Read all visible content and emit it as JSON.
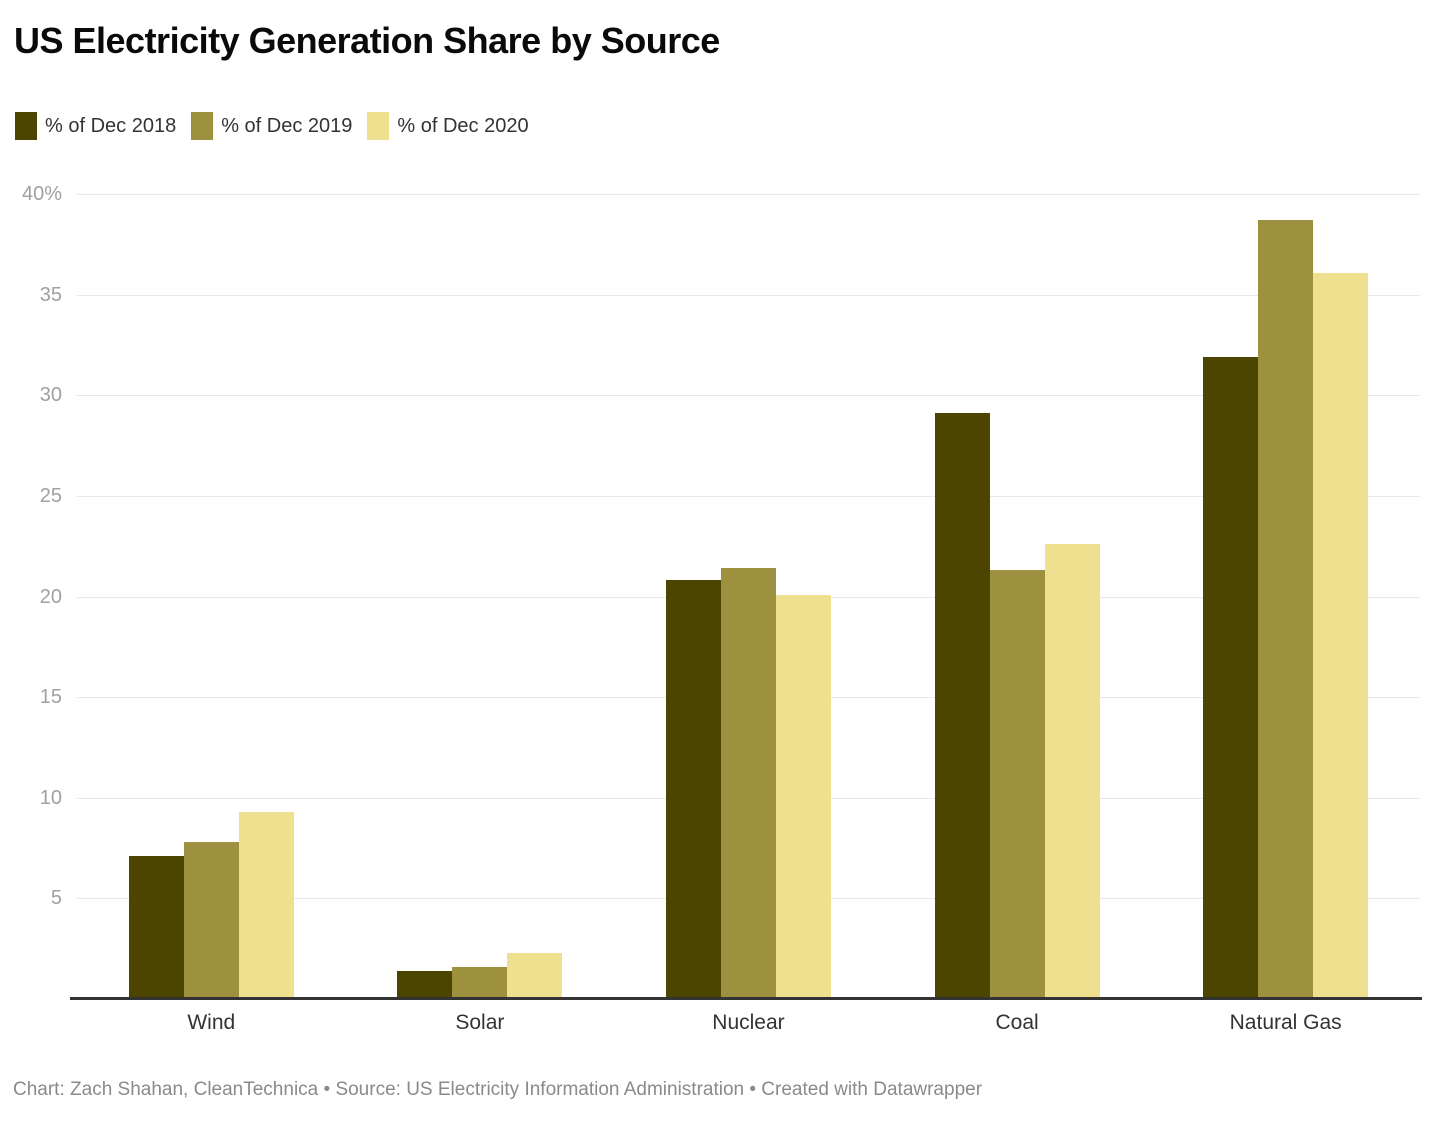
{
  "header": {
    "title": "US Electricity Generation Share by Source"
  },
  "legend": {
    "items": [
      {
        "label": "% of Dec 2018",
        "color": "#4b4500"
      },
      {
        "label": "% of Dec 2019",
        "color": "#9d9140"
      },
      {
        "label": "% of Dec 2020",
        "color": "#eee08e"
      }
    ]
  },
  "chart_data": {
    "type": "bar",
    "title": "US Electricity Generation Share by Source",
    "categories": [
      "Wind",
      "Solar",
      "Nuclear",
      "Coal",
      "Natural Gas"
    ],
    "series": [
      {
        "name": "% of Dec 2018",
        "color": "#4b4500",
        "values": [
          7.1,
          1.4,
          20.8,
          29.1,
          31.9
        ]
      },
      {
        "name": "% of Dec 2019",
        "color": "#9d9140",
        "values": [
          7.8,
          1.6,
          21.4,
          21.3,
          38.7
        ]
      },
      {
        "name": "% of Dec 2020",
        "color": "#eee08e",
        "values": [
          9.3,
          2.3,
          20.1,
          22.6,
          36.1
        ]
      }
    ],
    "xlabel": "",
    "ylabel": "",
    "ylim": [
      0,
      40
    ],
    "yticks": {
      "values": [
        40,
        35,
        30,
        25,
        20,
        15,
        10,
        5
      ],
      "labels": [
        "40%",
        "35",
        "30",
        "25",
        "20",
        "15",
        "10",
        "5"
      ]
    },
    "grid": true,
    "legend_position": "top-left"
  },
  "footer": {
    "text": "Chart: Zach Shahan, CleanTechnica • Source: US Electricity Information Administration • Created with Datawrapper"
  },
  "style": {
    "gridline_color": "#e8e8e8",
    "axis_line_color": "#333333",
    "tick_label_color": "#a0a0a0",
    "category_label_color": "#333333",
    "footer_color": "#8a8a8a"
  }
}
